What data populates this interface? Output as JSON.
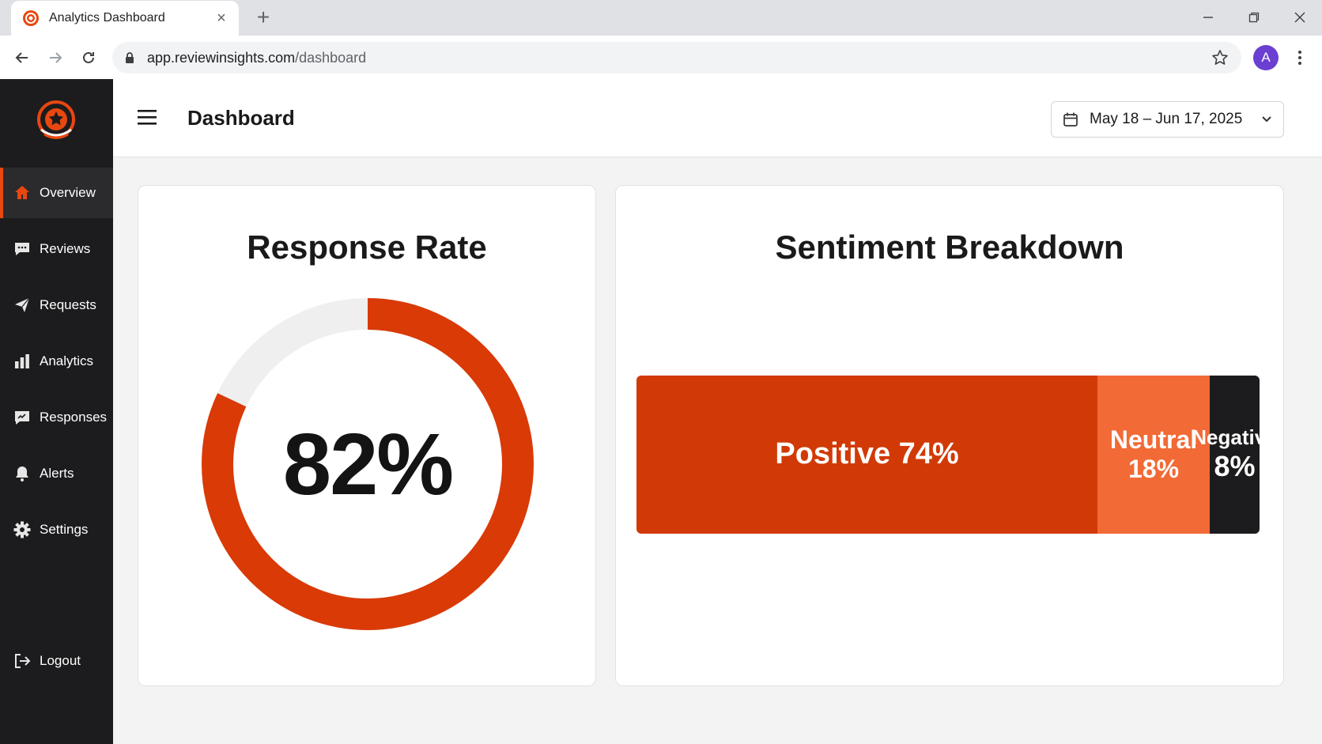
{
  "browser": {
    "tab_title": "Analytics Dashboard",
    "url_host": "app.reviewinsights.com",
    "url_path": "/dashboard",
    "profile_initial": "A"
  },
  "sidebar": {
    "items": [
      {
        "label": "Overview",
        "icon": "home-icon",
        "active": true
      },
      {
        "label": "Reviews",
        "icon": "chat-icon"
      },
      {
        "label": "Requests",
        "icon": "send-icon"
      },
      {
        "label": "Analytics",
        "icon": "bar-chart-icon"
      },
      {
        "label": "Responses",
        "icon": "reply-icon"
      },
      {
        "label": "Alerts",
        "icon": "bell-icon"
      },
      {
        "label": "Settings",
        "icon": "gear-icon"
      }
    ],
    "logout_label": "Logout"
  },
  "header": {
    "title": "Dashboard",
    "date_range": "May 18 – Jun 17, 2025"
  },
  "response_rate": {
    "title": "Response Rate",
    "value_label": "82%",
    "value": 82
  },
  "sentiment": {
    "title": "Sentiment Breakdown",
    "segments": [
      {
        "label": "Positive 74%",
        "value": 74,
        "color": "#d13a06"
      },
      {
        "label": "Neutral",
        "pct": "18%",
        "value": 18,
        "color": "#f26a35"
      },
      {
        "label": "Negative",
        "pct": "8%",
        "value": 8,
        "color": "#1c1c1e"
      }
    ]
  },
  "colors": {
    "accent": "#e8470f",
    "sidebar_bg": "#1c1c1e",
    "ring_track": "#efefef"
  }
}
